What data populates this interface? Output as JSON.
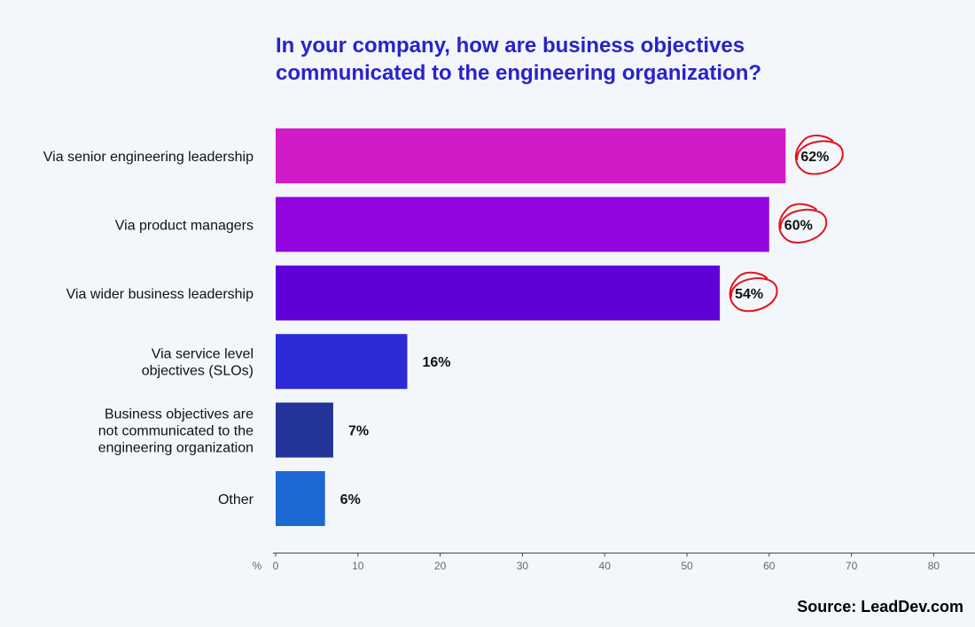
{
  "chart_data": {
    "type": "bar",
    "orientation": "horizontal",
    "title_lines": [
      "In your company, how are business objectives",
      "communicated to the engineering organization?"
    ],
    "categories": [
      [
        "Via senior engineering leadership"
      ],
      [
        "Via product managers"
      ],
      [
        "Via wider business leadership"
      ],
      [
        "Via service level",
        "objectives (SLOs)"
      ],
      [
        "Business objectives are",
        "not communicated to the",
        "engineering organization"
      ],
      [
        "Other"
      ]
    ],
    "values": [
      62,
      60,
      54,
      16,
      7,
      6
    ],
    "value_labels": [
      "62%",
      "60%",
      "54%",
      "16%",
      "7%",
      "6%"
    ],
    "highlighted": [
      true,
      true,
      true,
      false,
      false,
      false
    ],
    "bar_colors": [
      "#d21bc8",
      "#9306df",
      "#5e00d8",
      "#2e2ad6",
      "#24339a",
      "#1d69d4"
    ],
    "highlight_color": "#e0141e",
    "x_unit_label": "%",
    "x_ticks": [
      0,
      10,
      20,
      30,
      40,
      50,
      60,
      70,
      80
    ],
    "xlim": [
      0,
      85
    ],
    "grid": false
  },
  "source": "Source: LeadDev.com"
}
